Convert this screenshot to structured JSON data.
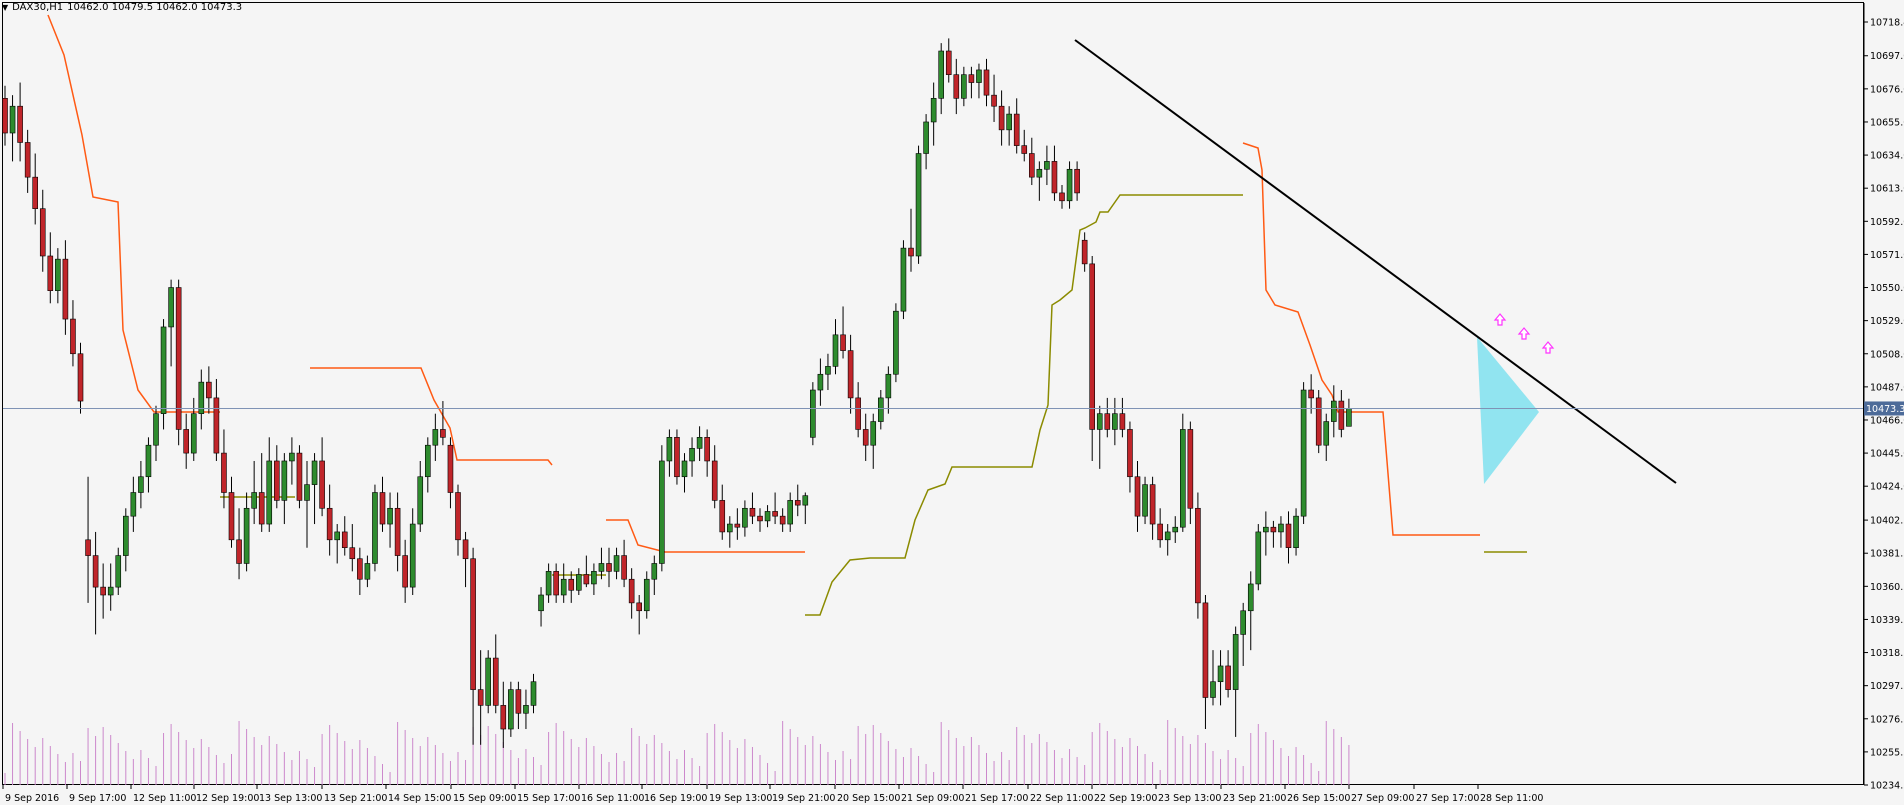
{
  "header": {
    "symbol": "DAX30,H1",
    "ohlc": "10462.0 10479.5 10462.0 10473.3"
  },
  "price_badge": "10473.3",
  "colors": {
    "bull": "#2e8b2e",
    "bear": "#c0252a",
    "wick": "#000000",
    "stopline": "#ff5a14",
    "olive": "#8b8b00",
    "trendline": "#000000",
    "triangle": "#7fe0ee",
    "volume": "#cc88cc",
    "arrow": "#ff33ff",
    "price_line": "#7f93b5",
    "badge_bg": "#4d6b99"
  },
  "chart_data": {
    "type": "candlestick",
    "y_range": [
      10234.5,
      10718.4
    ],
    "y_ticks": [
      10718.4,
      10697.0,
      10676.0,
      10655.0,
      10634.0,
      10613.0,
      10592.0,
      10571.0,
      10550.0,
      10529.0,
      10508.0,
      10487.0,
      10466.0,
      10445.0,
      10424.0,
      10402.5,
      10381.5,
      10360.5,
      10339.5,
      10318.5,
      10297.5,
      10276.5,
      10255.5,
      10234.5
    ],
    "x_labels": [
      "9 Sep 2016",
      "9 Sep 17:00",
      "12 Sep 11:00",
      "12 Sep 19:00",
      "13 Sep 13:00",
      "13 Sep 21:00",
      "14 Sep 15:00",
      "15 Sep 09:00",
      "15 Sep 17:00",
      "16 Sep 11:00",
      "16 Sep 19:00",
      "19 Sep 13:00",
      "19 Sep 21:00",
      "20 Sep 15:00",
      "21 Sep 09:00",
      "21 Sep 17:00",
      "22 Sep 11:00",
      "22 Sep 19:00",
      "23 Sep 13:00",
      "23 Sep 21:00",
      "26 Sep 15:00",
      "27 Sep 09:00",
      "27 Sep 17:00",
      "28 Sep 11:00"
    ],
    "last_price": 10473.3,
    "candles": [
      [
        10670,
        10678,
        10640,
        10648
      ],
      [
        10648,
        10672,
        10630,
        10665
      ],
      [
        10665,
        10680,
        10630,
        10642
      ],
      [
        10642,
        10650,
        10610,
        10620
      ],
      [
        10620,
        10635,
        10590,
        10600
      ],
      [
        10600,
        10612,
        10560,
        10570
      ],
      [
        10570,
        10585,
        10540,
        10548
      ],
      [
        10548,
        10575,
        10540,
        10568
      ],
      [
        10568,
        10580,
        10520,
        10530
      ],
      [
        10530,
        10542,
        10500,
        10508
      ],
      [
        10508,
        10515,
        10470,
        10478
      ],
      [
        10390,
        10430,
        10350,
        10380
      ],
      [
        10380,
        10395,
        10330,
        10360
      ],
      [
        10360,
        10375,
        10340,
        10355
      ],
      [
        10355,
        10375,
        10345,
        10360
      ],
      [
        10360,
        10385,
        10355,
        10380
      ],
      [
        10380,
        10410,
        10370,
        10405
      ],
      [
        10405,
        10430,
        10395,
        10420
      ],
      [
        10420,
        10440,
        10410,
        10430
      ],
      [
        10430,
        10455,
        10420,
        10450
      ],
      [
        10450,
        10475,
        10440,
        10470
      ],
      [
        10470,
        10530,
        10460,
        10525
      ],
      [
        10525,
        10555,
        10500,
        10550
      ],
      [
        10550,
        10555,
        10450,
        10460
      ],
      [
        10460,
        10470,
        10435,
        10445
      ],
      [
        10445,
        10480,
        10440,
        10470
      ],
      [
        10470,
        10498,
        10460,
        10490
      ],
      [
        10490,
        10500,
        10470,
        10480
      ],
      [
        10480,
        10492,
        10440,
        10445
      ],
      [
        10445,
        10460,
        10410,
        10420
      ],
      [
        10420,
        10430,
        10385,
        10390
      ],
      [
        10390,
        10410,
        10365,
        10375
      ],
      [
        10375,
        10420,
        10370,
        10410
      ],
      [
        10410,
        10440,
        10400,
        10420
      ],
      [
        10420,
        10445,
        10395,
        10400
      ],
      [
        10400,
        10455,
        10395,
        10440
      ],
      [
        10440,
        10450,
        10410,
        10415
      ],
      [
        10415,
        10445,
        10400,
        10440
      ],
      [
        10440,
        10455,
        10425,
        10445
      ],
      [
        10445,
        10450,
        10410,
        10415
      ],
      [
        10415,
        10440,
        10385,
        10425
      ],
      [
        10425,
        10445,
        10400,
        10440
      ],
      [
        10440,
        10455,
        10405,
        10410
      ],
      [
        10410,
        10425,
        10380,
        10390
      ],
      [
        10390,
        10400,
        10375,
        10395
      ],
      [
        10395,
        10405,
        10380,
        10385
      ],
      [
        10385,
        10400,
        10370,
        10378
      ],
      [
        10378,
        10385,
        10355,
        10365
      ],
      [
        10365,
        10380,
        10360,
        10375
      ],
      [
        10375,
        10425,
        10370,
        10420
      ],
      [
        10420,
        10430,
        10395,
        10400
      ],
      [
        10400,
        10420,
        10385,
        10410
      ],
      [
        10410,
        10420,
        10370,
        10380
      ],
      [
        10380,
        10390,
        10350,
        10360
      ],
      [
        10360,
        10410,
        10355,
        10400
      ],
      [
        10400,
        10440,
        10395,
        10430
      ],
      [
        10430,
        10455,
        10420,
        10450
      ],
      [
        10450,
        10470,
        10440,
        10460
      ],
      [
        10460,
        10478,
        10450,
        10455
      ],
      [
        10450,
        10455,
        10410,
        10420
      ],
      [
        10420,
        10425,
        10380,
        10390
      ],
      [
        10390,
        10395,
        10360,
        10378
      ],
      [
        10378,
        10385,
        10260,
        10295
      ],
      [
        10295,
        10320,
        10260,
        10285
      ],
      [
        10285,
        10320,
        10280,
        10315
      ],
      [
        10315,
        10330,
        10280,
        10285
      ],
      [
        10285,
        10300,
        10258,
        10270
      ],
      [
        10270,
        10300,
        10265,
        10295
      ],
      [
        10295,
        10300,
        10270,
        10280
      ],
      [
        10280,
        10295,
        10270,
        10285
      ],
      [
        10285,
        10305,
        10280,
        10300
      ],
      [
        10345,
        10360,
        10335,
        10355
      ],
      [
        10355,
        10375,
        10350,
        10370
      ],
      [
        10370,
        10375,
        10350,
        10355
      ],
      [
        10355,
        10375,
        10350,
        10365
      ],
      [
        10365,
        10370,
        10350,
        10358
      ],
      [
        10358,
        10372,
        10355,
        10368
      ],
      [
        10368,
        10380,
        10360,
        10362
      ],
      [
        10362,
        10375,
        10355,
        10370
      ],
      [
        10370,
        10385,
        10365,
        10375
      ],
      [
        10375,
        10385,
        10360,
        10370
      ],
      [
        10370,
        10385,
        10365,
        10380
      ],
      [
        10380,
        10390,
        10360,
        10365
      ],
      [
        10365,
        10372,
        10340,
        10350
      ],
      [
        10350,
        10355,
        10330,
        10345
      ],
      [
        10345,
        10370,
        10340,
        10365
      ],
      [
        10365,
        10380,
        10355,
        10375
      ],
      [
        10375,
        10450,
        10370,
        10440
      ],
      [
        10440,
        10460,
        10430,
        10455
      ],
      [
        10455,
        10460,
        10425,
        10430
      ],
      [
        10430,
        10445,
        10420,
        10440
      ],
      [
        10440,
        10455,
        10430,
        10448
      ],
      [
        10448,
        10462,
        10440,
        10455
      ],
      [
        10455,
        10460,
        10430,
        10440
      ],
      [
        10440,
        10450,
        10410,
        10415
      ],
      [
        10415,
        10425,
        10390,
        10395
      ],
      [
        10395,
        10405,
        10385,
        10400
      ],
      [
        10400,
        10410,
        10390,
        10398
      ],
      [
        10398,
        10415,
        10392,
        10410
      ],
      [
        10410,
        10420,
        10400,
        10405
      ],
      [
        10405,
        10410,
        10395,
        10402
      ],
      [
        10402,
        10412,
        10398,
        10408
      ],
      [
        10408,
        10420,
        10400,
        10405
      ],
      [
        10405,
        10410,
        10395,
        10400
      ],
      [
        10400,
        10420,
        10395,
        10415
      ],
      [
        10415,
        10425,
        10405,
        10412
      ],
      [
        10412,
        10420,
        10400,
        10418
      ],
      [
        10455,
        10490,
        10450,
        10485
      ],
      [
        10485,
        10505,
        10475,
        10495
      ],
      [
        10495,
        10508,
        10485,
        10500
      ],
      [
        10500,
        10530,
        10495,
        10520
      ],
      [
        10520,
        10538,
        10505,
        10510
      ],
      [
        10510,
        10520,
        10470,
        10480
      ],
      [
        10480,
        10490,
        10455,
        10460
      ],
      [
        10460,
        10470,
        10440,
        10450
      ],
      [
        10450,
        10470,
        10435,
        10465
      ],
      [
        10465,
        10485,
        10460,
        10480
      ],
      [
        10480,
        10500,
        10470,
        10495
      ],
      [
        10495,
        10540,
        10490,
        10535
      ],
      [
        10535,
        10580,
        10530,
        10575
      ],
      [
        10575,
        10600,
        10560,
        10570
      ],
      [
        10570,
        10640,
        10565,
        10635
      ],
      [
        10635,
        10660,
        10625,
        10655
      ],
      [
        10655,
        10680,
        10640,
        10670
      ],
      [
        10670,
        10705,
        10660,
        10700
      ],
      [
        10700,
        10708,
        10680,
        10685
      ],
      [
        10685,
        10695,
        10660,
        10670
      ],
      [
        10670,
        10690,
        10665,
        10685
      ],
      [
        10685,
        10690,
        10670,
        10680
      ],
      [
        10680,
        10692,
        10670,
        10688
      ],
      [
        10688,
        10695,
        10665,
        10672
      ],
      [
        10672,
        10685,
        10655,
        10665
      ],
      [
        10665,
        10675,
        10640,
        10650
      ],
      [
        10650,
        10665,
        10640,
        10660
      ],
      [
        10660,
        10670,
        10635,
        10640
      ],
      [
        10640,
        10650,
        10630,
        10635
      ],
      [
        10635,
        10645,
        10615,
        10620
      ],
      [
        10620,
        10630,
        10605,
        10625
      ],
      [
        10625,
        10640,
        10615,
        10630
      ],
      [
        10630,
        10640,
        10605,
        10610
      ],
      [
        10610,
        10615,
        10600,
        10605
      ],
      [
        10605,
        10630,
        10600,
        10625
      ],
      [
        10625,
        10630,
        10605,
        10610
      ],
      [
        10580,
        10585,
        10560,
        10565
      ],
      [
        10565,
        10570,
        10440,
        10460
      ],
      [
        10460,
        10475,
        10435,
        10470
      ],
      [
        10470,
        10480,
        10455,
        10460
      ],
      [
        10460,
        10480,
        10450,
        10470
      ],
      [
        10470,
        10480,
        10455,
        10460
      ],
      [
        10460,
        10465,
        10420,
        10430
      ],
      [
        10430,
        10440,
        10395,
        10405
      ],
      [
        10405,
        10430,
        10400,
        10425
      ],
      [
        10425,
        10430,
        10390,
        10400
      ],
      [
        10400,
        10410,
        10385,
        10390
      ],
      [
        10390,
        10400,
        10380,
        10395
      ],
      [
        10395,
        10405,
        10388,
        10398
      ],
      [
        10398,
        10470,
        10395,
        10460
      ],
      [
        10460,
        10465,
        10400,
        10410
      ],
      [
        10410,
        10420,
        10340,
        10350
      ],
      [
        10350,
        10355,
        10270,
        10290
      ],
      [
        10290,
        10320,
        10285,
        10300
      ],
      [
        10300,
        10320,
        10285,
        10310
      ],
      [
        10310,
        10320,
        10290,
        10295
      ],
      [
        10295,
        10335,
        10265,
        10330
      ],
      [
        10330,
        10350,
        10310,
        10345
      ],
      [
        10345,
        10370,
        10320,
        10362
      ],
      [
        10362,
        10400,
        10358,
        10395
      ],
      [
        10395,
        10408,
        10380,
        10398
      ],
      [
        10398,
        10402,
        10385,
        10395
      ],
      [
        10395,
        10405,
        10385,
        10400
      ],
      [
        10400,
        10408,
        10375,
        10385
      ],
      [
        10385,
        10410,
        10380,
        10405
      ],
      [
        10405,
        10490,
        10400,
        10485
      ],
      [
        10485,
        10495,
        10470,
        10480
      ],
      [
        10480,
        10485,
        10445,
        10450
      ],
      [
        10450,
        10470,
        10440,
        10465
      ],
      [
        10465,
        10488,
        10455,
        10478
      ],
      [
        10478,
        10485,
        10455,
        10460
      ],
      [
        10462,
        10479.5,
        10462,
        10473.3
      ]
    ]
  }
}
